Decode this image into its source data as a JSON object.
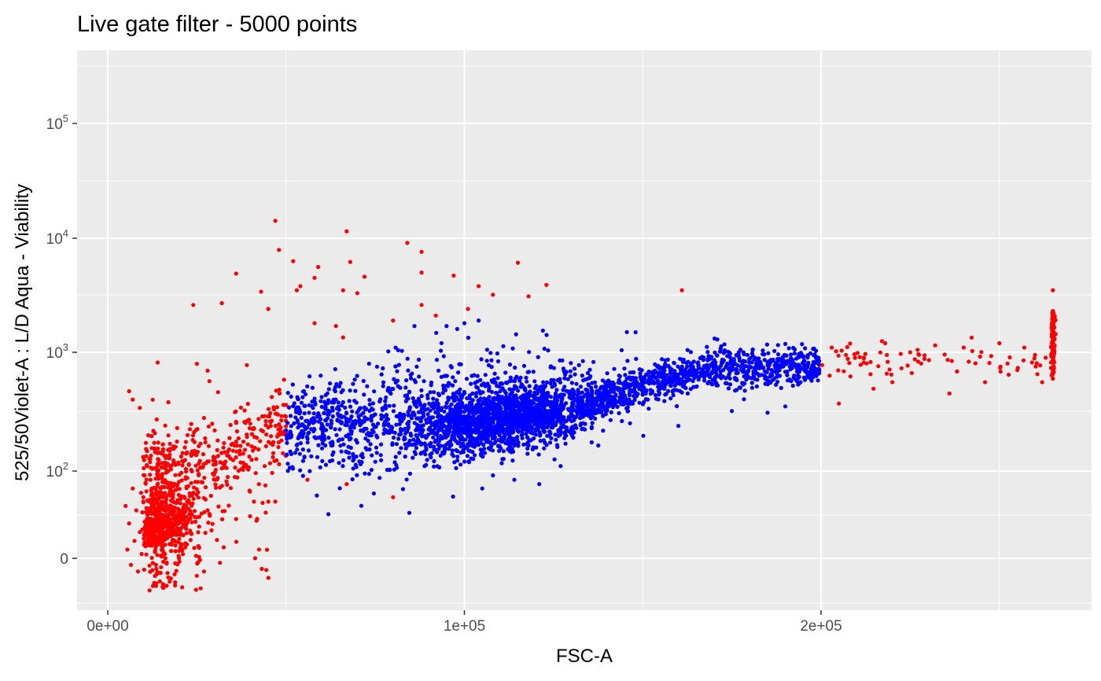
{
  "chart_data": {
    "type": "scatter",
    "title": "Live gate filter - 5000 points",
    "xlabel": "FSC-A",
    "ylabel": "525/50Violet-A : L/D Aqua - Viability",
    "xlim": [
      -8000,
      276000
    ],
    "y_scale": "biexponential (linear near 0, log above ~100)",
    "x_ticks": [
      {
        "value": 0,
        "label": "0e+00"
      },
      {
        "value": 100000,
        "label": "1e+05"
      },
      {
        "value": 200000,
        "label": "2e+05"
      }
    ],
    "x_minor_ticks": [
      50000,
      150000,
      250000
    ],
    "y_ticks": [
      {
        "value": 0,
        "label": "0"
      },
      {
        "value": 100,
        "label": "10",
        "exp": "2"
      },
      {
        "value": 1000,
        "label": "10",
        "exp": "3"
      },
      {
        "value": 10000,
        "label": "10",
        "exp": "4"
      },
      {
        "value": 100000,
        "label": "10",
        "exp": "5"
      }
    ],
    "panel_background": "#ebebeb",
    "grid": true,
    "legend": "none",
    "colors": {
      "gated_in": "#0000ff",
      "gated_out": "#ff0000"
    },
    "n_points": 5000,
    "gate": {
      "x_min": 50000,
      "x_max": 200000
    },
    "series": [
      {
        "color": "#ff0000",
        "description_points": "outside live gate (FSC-A < ~5e4 or > ~2e5)",
        "sample_points": [
          [
            47000,
            14200
          ],
          [
            67000,
            11500
          ],
          [
            84000,
            9100
          ],
          [
            48000,
            7900
          ],
          [
            52000,
            6300
          ],
          [
            68000,
            6200
          ],
          [
            88000,
            7600
          ],
          [
            88000,
            5000
          ],
          [
            59000,
            5600
          ],
          [
            115000,
            6100
          ],
          [
            36000,
            4900
          ],
          [
            58000,
            4500
          ],
          [
            72000,
            4600
          ],
          [
            97000,
            4700
          ],
          [
            104000,
            3800
          ],
          [
            108000,
            3200
          ],
          [
            123000,
            3900
          ],
          [
            118000,
            3100
          ],
          [
            161000,
            3500
          ],
          [
            43000,
            3400
          ],
          [
            53000,
            3500
          ],
          [
            54000,
            3800
          ],
          [
            66000,
            3500
          ],
          [
            70000,
            3300
          ],
          [
            24000,
            2600
          ],
          [
            32000,
            2700
          ],
          [
            45000,
            2400
          ],
          [
            88000,
            2600
          ],
          [
            92000,
            2100
          ],
          [
            101000,
            2400
          ],
          [
            58000,
            1800
          ],
          [
            64000,
            1700
          ],
          [
            80000,
            1900
          ],
          [
            66000,
            1350
          ],
          [
            25000,
            800
          ],
          [
            28000,
            700
          ],
          [
            14000,
            820
          ],
          [
            39000,
            780
          ],
          [
            17000,
            380
          ],
          [
            6000,
            470
          ],
          [
            7000,
            400
          ],
          [
            9000,
            340
          ],
          [
            46000,
            420
          ],
          [
            27000,
            280
          ],
          [
            30000,
            220
          ],
          [
            44000,
            290
          ],
          [
            50000,
            360
          ],
          [
            41000,
            230
          ],
          [
            35000,
            170
          ],
          [
            38000,
            140
          ],
          [
            19000,
            160
          ],
          [
            22000,
            140
          ],
          [
            26000,
            170
          ],
          [
            33000,
            120
          ],
          [
            44000,
            110
          ],
          [
            30000,
            90
          ],
          [
            56000,
            90
          ],
          [
            67000,
            85
          ],
          [
            80000,
            70
          ],
          [
            47000,
            65
          ],
          [
            41000,
            65
          ],
          [
            36000,
            45
          ],
          [
            28000,
            55
          ],
          [
            22000,
            60
          ],
          [
            5000,
            60
          ],
          [
            6000,
            40
          ],
          [
            7000,
            80
          ],
          [
            8000,
            55
          ],
          [
            9000,
            30
          ],
          [
            10000,
            70
          ],
          [
            11000,
            45
          ],
          [
            12000,
            90
          ],
          [
            13000,
            25
          ],
          [
            14000,
            100
          ],
          [
            15000,
            50
          ],
          [
            16000,
            75
          ],
          [
            5500,
            10
          ],
          [
            6500,
            -5
          ],
          [
            7500,
            20
          ],
          [
            8500,
            -10
          ],
          [
            9500,
            5
          ],
          [
            11500,
            15
          ],
          [
            13500,
            -5
          ],
          [
            16000,
            5
          ],
          [
            20000,
            0
          ],
          [
            27000,
            -10
          ],
          [
            203000,
            1100
          ],
          [
            207000,
            950
          ],
          [
            212000,
            900
          ],
          [
            218000,
            1200
          ],
          [
            225000,
            1000
          ],
          [
            232000,
            1150
          ],
          [
            240000,
            1100
          ],
          [
            250000,
            1200
          ],
          [
            260000,
            950
          ],
          [
            263000,
            900
          ],
          [
            265000,
            1500
          ],
          [
            265000,
            2300
          ],
          [
            265000,
            3500
          ],
          [
            265000,
            700
          ],
          [
            265000,
            600
          ],
          [
            262000,
            560
          ],
          [
            246000,
            560
          ],
          [
            236000,
            450
          ],
          [
            220000,
            560
          ],
          [
            205000,
            370
          ],
          [
            212000,
            820
          ],
          [
            229000,
            880
          ],
          [
            257000,
            1100
          ]
        ]
      },
      {
        "color": "#0000ff",
        "description_points": "inside live gate (FSC-A ~5e4 to ~2e5)",
        "sample_points": [
          [
            57000,
            260
          ],
          [
            62000,
            300
          ],
          [
            68000,
            230
          ],
          [
            73000,
            180
          ],
          [
            79000,
            210
          ],
          [
            84000,
            250
          ],
          [
            90000,
            280
          ],
          [
            96000,
            300
          ],
          [
            100000,
            250
          ],
          [
            105000,
            330
          ],
          [
            110000,
            280
          ],
          [
            115000,
            260
          ],
          [
            120000,
            300
          ],
          [
            125000,
            280
          ],
          [
            130000,
            310
          ],
          [
            135000,
            360
          ],
          [
            140000,
            420
          ],
          [
            145000,
            500
          ],
          [
            150000,
            600
          ],
          [
            155000,
            620
          ],
          [
            160000,
            650
          ],
          [
            165000,
            700
          ],
          [
            170000,
            720
          ],
          [
            175000,
            740
          ],
          [
            180000,
            760
          ],
          [
            185000,
            780
          ],
          [
            190000,
            800
          ],
          [
            195000,
            820
          ],
          [
            98000,
            1600
          ],
          [
            100000,
            1800
          ],
          [
            104000,
            1900
          ],
          [
            95000,
            1700
          ],
          [
            86000,
            1700
          ],
          [
            148000,
            1500
          ],
          [
            122000,
            1550
          ],
          [
            105000,
            80
          ],
          [
            108000,
            95
          ],
          [
            114000,
            90
          ],
          [
            121000,
            85
          ],
          [
            127000,
            110
          ],
          [
            100000,
            120
          ],
          [
            92000,
            150
          ],
          [
            85000,
            200
          ],
          [
            75000,
            300
          ],
          [
            66000,
            380
          ],
          [
            60000,
            420
          ],
          [
            55000,
            470
          ],
          [
            160000,
            240
          ],
          [
            175000,
            320
          ],
          [
            185000,
            310
          ],
          [
            190000,
            350
          ]
        ]
      }
    ]
  }
}
